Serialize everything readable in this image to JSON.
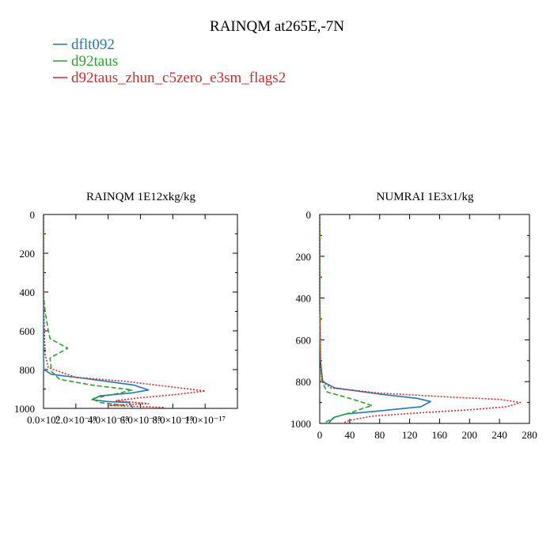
{
  "chart_data": {
    "title": "RAINQM at265E,-7N",
    "series_styles": [
      {
        "name": "dflt092",
        "color": "#1f77b4",
        "dash": "solid"
      },
      {
        "name": "d92taus",
        "color": "#2ca02c",
        "dash": "dashed"
      },
      {
        "name": "d92taus_zhun_c5zero_e3sm_flags2",
        "color": "#d62728",
        "dash": "dotted"
      }
    ],
    "panels": [
      {
        "type": "line",
        "title": "RAINQM  1E12xkg/kg",
        "xlim": [
          0,
          1.2e-17
        ],
        "ylim": [
          1000,
          0
        ],
        "y_reversed": true,
        "xticks": [
          0,
          2e-18,
          4e-18,
          6e-18,
          8e-18,
          1e-17
        ],
        "xtick_labels": [
          "0.0×10⁰",
          "2.0×10⁻¹⁸",
          "4.0×10⁻¹⁸",
          "6.0×10⁻¹⁸",
          "8.0×10⁻¹⁸",
          "1.0×10⁻¹⁷"
        ],
        "yticks": [
          0,
          200,
          400,
          600,
          800,
          1000
        ],
        "ytick_labels": [
          "0",
          "200",
          "400",
          "600",
          "800",
          "1000"
        ],
        "series": [
          {
            "name": "dflt092",
            "points": [
              [
                0,
                0
              ],
              [
                0,
                300
              ],
              [
                0,
                700
              ],
              [
                2e-20,
                800
              ],
              [
                5e-19,
                825
              ],
              [
                2.5e-18,
                845
              ],
              [
                5.6e-18,
                880
              ],
              [
                6.5e-18,
                905
              ],
              [
                5.5e-18,
                920
              ],
              [
                3.5e-18,
                935
              ],
              [
                3e-18,
                955
              ],
              [
                4e-18,
                965
              ],
              [
                5.3e-18,
                970
              ],
              [
                5.5e-18,
                995
              ],
              [
                5.5e-18,
                1000
              ]
            ]
          },
          {
            "name": "d92taus",
            "points": [
              [
                0,
                0
              ],
              [
                0,
                420
              ],
              [
                1e-19,
                500
              ],
              [
                3e-19,
                600
              ],
              [
                4e-19,
                640
              ],
              [
                1.5e-18,
                690
              ],
              [
                4e-19,
                740
              ],
              [
                5e-19,
                810
              ],
              [
                1e-18,
                850
              ],
              [
                3e-18,
                880
              ],
              [
                5.5e-18,
                905
              ],
              [
                4.5e-18,
                925
              ],
              [
                3e-18,
                950
              ],
              [
                3.5e-18,
                970
              ],
              [
                5e-18,
                985
              ],
              [
                5e-18,
                1000
              ]
            ]
          },
          {
            "name": "d92taus_zhun_c5zero_e3sm_flags2",
            "points": [
              [
                0,
                0
              ],
              [
                0,
                400
              ],
              [
                5e-20,
                600
              ],
              [
                1e-19,
                720
              ],
              [
                3e-19,
                790
              ],
              [
                2e-18,
                840
              ],
              [
                5e-18,
                860
              ],
              [
                8.5e-18,
                895
              ],
              [
                1e-17,
                910
              ],
              [
                8e-18,
                930
              ],
              [
                6e-18,
                945
              ],
              [
                4.5e-18,
                960
              ],
              [
                6.5e-18,
                975
              ],
              [
                4e-18,
                985
              ],
              [
                7.5e-18,
                995
              ],
              [
                7.5e-18,
                1000
              ]
            ]
          }
        ]
      },
      {
        "type": "line",
        "title": "NUMRAI  1E3x1/kg",
        "xlim": [
          0,
          280
        ],
        "ylim": [
          1000,
          0
        ],
        "y_reversed": true,
        "xticks": [
          0,
          40,
          80,
          120,
          160,
          200,
          240,
          280
        ],
        "xtick_labels": [
          "0",
          "40",
          "80",
          "120",
          "160",
          "200",
          "240",
          "280"
        ],
        "yticks": [
          0,
          200,
          400,
          600,
          800,
          1000
        ],
        "ytick_labels": [
          "0",
          "200",
          "400",
          "600",
          "800",
          "1000"
        ],
        "series": [
          {
            "name": "dflt092",
            "points": [
              [
                0,
                0
              ],
              [
                0,
                400
              ],
              [
                1,
                700
              ],
              [
                4,
                800
              ],
              [
                20,
                830
              ],
              [
                80,
                860
              ],
              [
                130,
                880
              ],
              [
                148,
                895
              ],
              [
                135,
                920
              ],
              [
                80,
                940
              ],
              [
                35,
                955
              ],
              [
                20,
                970
              ],
              [
                15,
                985
              ],
              [
                12,
                1000
              ]
            ]
          },
          {
            "name": "d92taus",
            "points": [
              [
                0,
                0
              ],
              [
                0,
                400
              ],
              [
                1,
                700
              ],
              [
                3,
                800
              ],
              [
                10,
                850
              ],
              [
                40,
                880
              ],
              [
                62,
                905
              ],
              [
                70,
                915
              ],
              [
                60,
                925
              ],
              [
                40,
                950
              ],
              [
                20,
                970
              ],
              [
                10,
                990
              ],
              [
                5,
                1000
              ]
            ]
          },
          {
            "name": "d92taus_zhun_c5zero_e3sm_flags2",
            "points": [
              [
                0,
                0
              ],
              [
                0,
                400
              ],
              [
                1,
                700
              ],
              [
                3,
                800
              ],
              [
                15,
                830
              ],
              [
                80,
                855
              ],
              [
                180,
                875
              ],
              [
                240,
                885
              ],
              [
                268,
                900
              ],
              [
                250,
                920
              ],
              [
                200,
                935
              ],
              [
                130,
                950
              ],
              [
                70,
                965
              ],
              [
                40,
                985
              ],
              [
                30,
                1000
              ]
            ]
          }
        ]
      }
    ]
  }
}
